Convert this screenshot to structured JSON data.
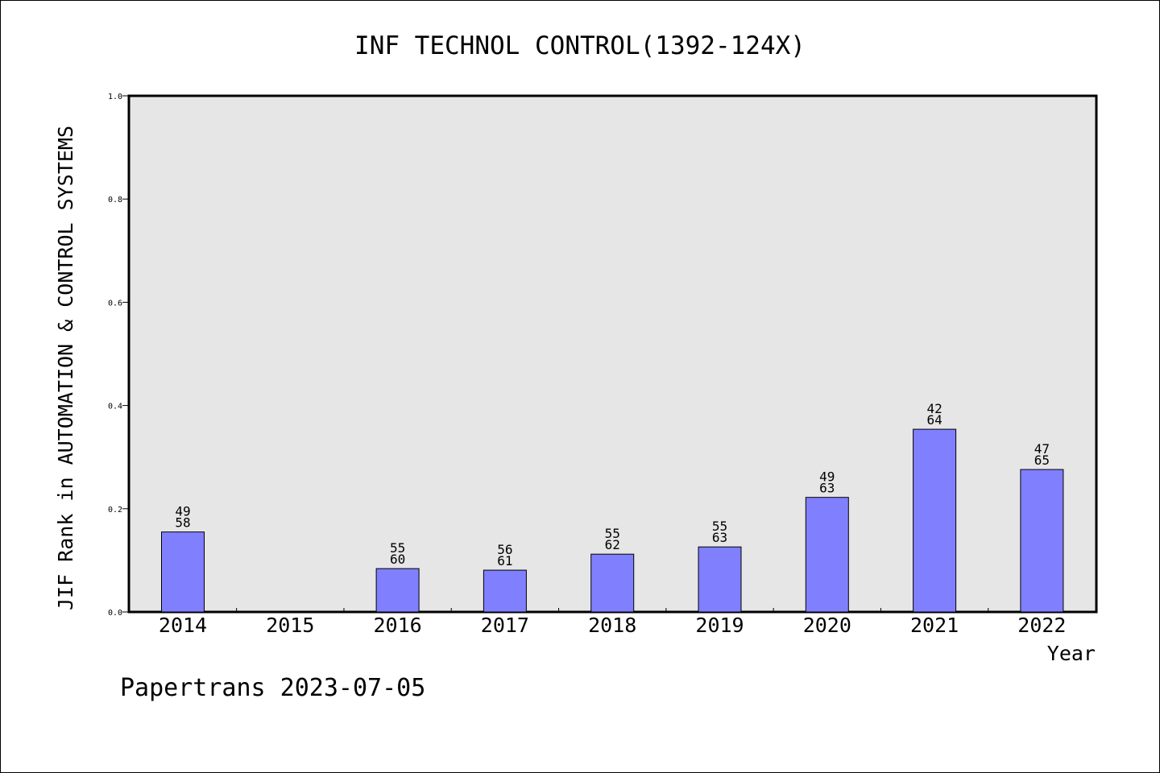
{
  "chart_data": {
    "type": "bar",
    "title": "INF TECHNOL CONTROL(1392-124X)",
    "xlabel": "Year",
    "ylabel": "JIF Rank in AUTOMATION & CONTROL SYSTEMS",
    "ylim": [
      0,
      1.0
    ],
    "yticks": [
      "0.0",
      "0.2",
      "0.4",
      "0.6",
      "0.8",
      "1.0"
    ],
    "categories": [
      "2014",
      "2015",
      "2016",
      "2017",
      "2018",
      "2019",
      "2020",
      "2021",
      "2022"
    ],
    "values": [
      0.155,
      null,
      0.084,
      0.081,
      0.112,
      0.126,
      0.222,
      0.354,
      0.276
    ],
    "labels": [
      [
        "49",
        "58"
      ],
      null,
      [
        "55",
        "60"
      ],
      [
        "56",
        "61"
      ],
      [
        "55",
        "62"
      ],
      [
        "55",
        "63"
      ],
      [
        "49",
        "63"
      ],
      [
        "42",
        "64"
      ],
      [
        "47",
        "65"
      ]
    ],
    "grid": false,
    "bar_color": "#8080ff",
    "plot_background": "#e6e6e6"
  },
  "footer": "Papertrans 2023-07-05"
}
